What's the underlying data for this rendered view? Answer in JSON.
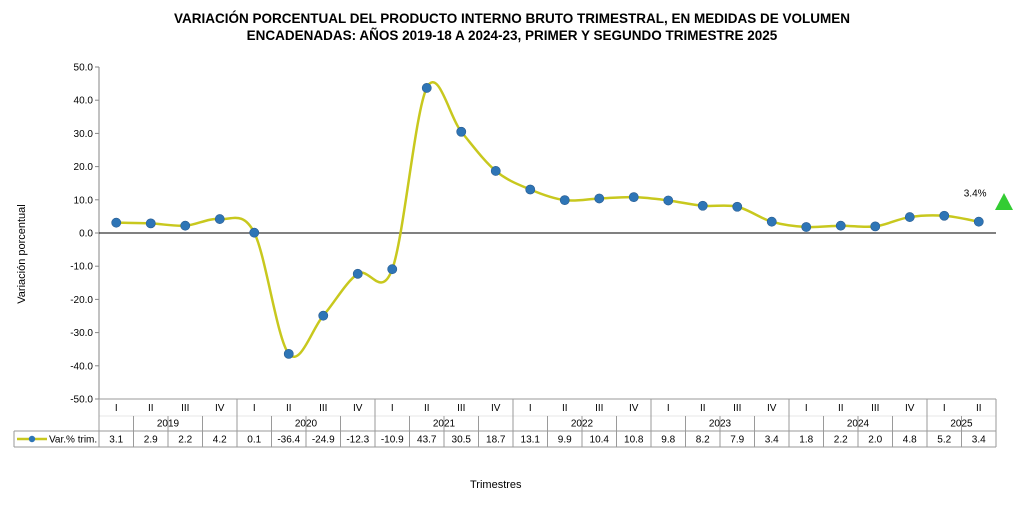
{
  "chart_data": {
    "type": "line",
    "title_line1": "VARIACIÓN PORCENTUAL DEL PRODUCTO INTERNO BRUTO TRIMESTRAL, EN MEDIDAS DE VOLUMEN",
    "title_line2": "ENCADENADAS: AÑOS 2019-18 A 2024-23, PRIMER Y SEGUNDO TRIMESTRE 2025",
    "ylabel": "Variación porcentual",
    "xlabel": "Trimestres",
    "ylim": [
      -50,
      50
    ],
    "yticks": [
      50,
      40,
      30,
      20,
      10,
      0,
      -10,
      -20,
      -30,
      -40,
      -50
    ],
    "ytick_labels": [
      "50.0",
      "40.0",
      "30.0",
      "20.0",
      "10.0",
      "0.0",
      "-10.0",
      "-20.0",
      "-30.0",
      "-40.0",
      "-50.0"
    ],
    "quarters": [
      "I",
      "II",
      "III",
      "IV",
      "I",
      "II",
      "III",
      "IV",
      "I",
      "II",
      "III",
      "IV",
      "I",
      "II",
      "III",
      "IV",
      "I",
      "II",
      "III",
      "IV",
      "I",
      "II",
      "III",
      "IV",
      "I",
      "II"
    ],
    "years": [
      {
        "label": "2019",
        "count": 4
      },
      {
        "label": "2020",
        "count": 4
      },
      {
        "label": "2021",
        "count": 4
      },
      {
        "label": "2022",
        "count": 4
      },
      {
        "label": "2023",
        "count": 4
      },
      {
        "label": "2024",
        "count": 4
      },
      {
        "label": "2025",
        "count": 2
      }
    ],
    "series": [
      {
        "name": "Var.% trim.",
        "color": "#c8c81e",
        "marker_color": "#2e75b6",
        "values": [
          3.1,
          2.9,
          2.2,
          4.2,
          0.1,
          -36.4,
          -24.9,
          -12.3,
          -10.9,
          43.7,
          30.5,
          18.7,
          13.1,
          9.9,
          10.4,
          10.8,
          9.8,
          8.2,
          7.9,
          3.4,
          1.8,
          2.2,
          2.0,
          4.8,
          5.2,
          3.4
        ],
        "value_labels": [
          "3.1",
          "2.9",
          "2.2",
          "4.2",
          "0.1",
          "-36.4",
          "-24.9",
          "-12.3",
          "-10.9",
          "43.7",
          "30.5",
          "18.7",
          "13.1",
          "9.9",
          "10.4",
          "10.8",
          "9.8",
          "8.2",
          "7.9",
          "3.4",
          "1.8",
          "2.2",
          "2.0",
          "4.8",
          "5.2",
          "3.4"
        ]
      }
    ],
    "annotation": {
      "text": "3.4%",
      "indicator": "up-triangle",
      "indicator_color": "#33cc33"
    }
  }
}
